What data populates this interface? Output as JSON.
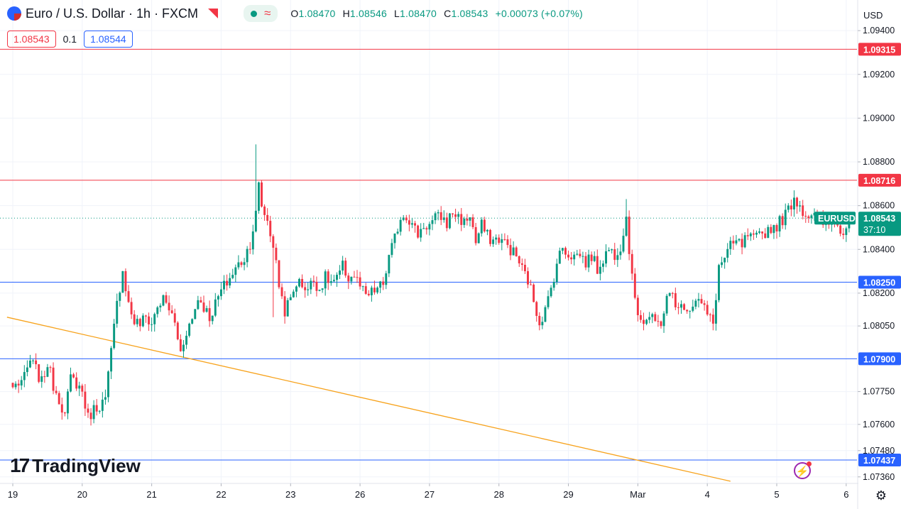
{
  "header": {
    "symbol_title": "Euro / U.S. Dollar · 1h · FXCM",
    "ohlc": {
      "o_label": "O",
      "o": "1.08470",
      "h_label": "H",
      "h": "1.08546",
      "l_label": "L",
      "l": "1.08470",
      "c_label": "C",
      "c": "1.08543",
      "change": "+0.00073 (+0.07%)"
    },
    "sell_price": "1.08543",
    "spread": "0.1",
    "buy_price": "1.08544",
    "currency": "USD"
  },
  "branding": {
    "logo_text": "TradingView"
  },
  "icons": {
    "flag": "eur-usd-flag-icon",
    "market": "market-status-icon",
    "wave": "approx-icon",
    "gear": "settings-gear-icon",
    "alert": "alert-bolt-icon"
  },
  "colors": {
    "up": "#089981",
    "down": "#f23645",
    "support": "#2962ff",
    "resistance": "#f23645",
    "trendline": "#f7a21b",
    "grid": "#f0f3fa"
  },
  "chart_data": {
    "type": "candlestick",
    "symbol": "EURUSD",
    "interval": "1h",
    "ylim": [
      1.0733,
      1.0954
    ],
    "y_ticks": [
      "1.09400",
      "1.09200",
      "1.09000",
      "1.08800",
      "1.08600",
      "1.08400",
      "1.08200",
      "1.08050",
      "1.07750",
      "1.07600",
      "1.07480",
      "1.07360"
    ],
    "y_tick_values": [
      1.094,
      1.092,
      1.09,
      1.088,
      1.086,
      1.084,
      1.082,
      1.0805,
      1.0775,
      1.076,
      1.0748,
      1.0736
    ],
    "x_ticks": [
      "19",
      "20",
      "21",
      "22",
      "23",
      "26",
      "27",
      "28",
      "29",
      "Mar",
      "4",
      "5",
      "6"
    ],
    "x_tick_bar_index": [
      0,
      24,
      48,
      72,
      96,
      120,
      144,
      168,
      192,
      216,
      240,
      264,
      288
    ],
    "horizontal_lines": [
      {
        "label": "1.09315",
        "value": 1.09315,
        "color": "#f23645"
      },
      {
        "label": "1.08716",
        "value": 1.08716,
        "color": "#f23645"
      },
      {
        "label": "1.08250",
        "value": 1.0825,
        "color": "#2962ff"
      },
      {
        "label": "1.07900",
        "value": 1.079,
        "color": "#2962ff"
      },
      {
        "label": "1.07437",
        "value": 1.07437,
        "color": "#2962ff"
      }
    ],
    "trendline": {
      "start": {
        "bar": -2,
        "value": 1.0809
      },
      "end": {
        "bar": 248,
        "value": 1.0734
      },
      "color": "#f7a21b"
    },
    "last_price": {
      "symbol": "EURUSD",
      "value": "1.08543",
      "countdown": "37:10"
    },
    "anchors": [
      [
        0,
        1.0777
      ],
      [
        4,
        1.0781
      ],
      [
        6,
        1.0789
      ],
      [
        8,
        1.0785
      ],
      [
        10,
        1.0779
      ],
      [
        12,
        1.0788
      ],
      [
        14,
        1.0778
      ],
      [
        16,
        1.0772
      ],
      [
        18,
        1.0764
      ],
      [
        20,
        1.0781
      ],
      [
        22,
        1.0779
      ],
      [
        24,
        1.0775
      ],
      [
        26,
        1.0763
      ],
      [
        28,
        1.0767
      ],
      [
        30,
        1.0769
      ],
      [
        32,
        1.0771
      ],
      [
        34,
        1.0793
      ],
      [
        36,
        1.0815
      ],
      [
        38,
        1.0831
      ],
      [
        40,
        1.0815
      ],
      [
        42,
        1.0807
      ],
      [
        44,
        1.0806
      ],
      [
        46,
        1.0809
      ],
      [
        48,
        1.0806
      ],
      [
        50,
        1.0814
      ],
      [
        52,
        1.0817
      ],
      [
        54,
        1.0813
      ],
      [
        56,
        1.0806
      ],
      [
        58,
        1.0793
      ],
      [
        60,
        1.0803
      ],
      [
        62,
        1.0808
      ],
      [
        64,
        1.0818
      ],
      [
        66,
        1.0814
      ],
      [
        68,
        1.0809
      ],
      [
        70,
        1.0815
      ],
      [
        72,
        1.0821
      ],
      [
        74,
        1.0825
      ],
      [
        76,
        1.0829
      ],
      [
        78,
        1.0833
      ],
      [
        80,
        1.0836
      ],
      [
        82,
        1.0843
      ],
      [
        84,
        1.0856
      ],
      [
        85,
        1.0869
      ],
      [
        86,
        1.086
      ],
      [
        88,
        1.0853
      ],
      [
        90,
        1.0842
      ],
      [
        92,
        1.0824
      ],
      [
        94,
        1.0812
      ],
      [
        96,
        1.0817
      ],
      [
        98,
        1.0825
      ],
      [
        100,
        1.0824
      ],
      [
        102,
        1.0822
      ],
      [
        104,
        1.0826
      ],
      [
        106,
        1.0822
      ],
      [
        108,
        1.0827
      ],
      [
        110,
        1.0825
      ],
      [
        112,
        1.0826
      ],
      [
        114,
        1.0832
      ],
      [
        116,
        1.0827
      ],
      [
        118,
        1.0828
      ],
      [
        120,
        1.0823
      ],
      [
        122,
        1.0818
      ],
      [
        124,
        1.082
      ],
      [
        126,
        1.0822
      ],
      [
        128,
        1.0824
      ],
      [
        130,
        1.0836
      ],
      [
        132,
        1.0845
      ],
      [
        134,
        1.0855
      ],
      [
        136,
        1.0856
      ],
      [
        138,
        1.0851
      ],
      [
        140,
        1.0847
      ],
      [
        142,
        1.0851
      ],
      [
        144,
        1.0851
      ],
      [
        146,
        1.0854
      ],
      [
        148,
        1.0855
      ],
      [
        150,
        1.0852
      ],
      [
        152,
        1.0857
      ],
      [
        154,
        1.0855
      ],
      [
        156,
        1.0852
      ],
      [
        158,
        1.0856
      ],
      [
        160,
        1.0843
      ],
      [
        162,
        1.0851
      ],
      [
        164,
        1.0846
      ],
      [
        166,
        1.0844
      ],
      [
        168,
        1.0845
      ],
      [
        170,
        1.0843
      ],
      [
        172,
        1.084
      ],
      [
        174,
        1.0837
      ],
      [
        176,
        1.0831
      ],
      [
        178,
        1.0826
      ],
      [
        180,
        1.0817
      ],
      [
        182,
        1.0807
      ],
      [
        184,
        1.0812
      ],
      [
        186,
        1.0822
      ],
      [
        188,
        1.0834
      ],
      [
        190,
        1.0841
      ],
      [
        192,
        1.0838
      ],
      [
        194,
        1.0837
      ],
      [
        196,
        1.0838
      ],
      [
        198,
        1.0834
      ],
      [
        200,
        1.0837
      ],
      [
        202,
        1.0831
      ],
      [
        204,
        1.0836
      ],
      [
        206,
        1.084
      ],
      [
        208,
        1.0838
      ],
      [
        210,
        1.0842
      ],
      [
        212,
        1.0855
      ],
      [
        214,
        1.0826
      ],
      [
        216,
        1.0812
      ],
      [
        218,
        1.0807
      ],
      [
        220,
        1.0809
      ],
      [
        222,
        1.0806
      ],
      [
        224,
        1.0807
      ],
      [
        226,
        1.0817
      ],
      [
        228,
        1.082
      ],
      [
        230,
        1.0812
      ],
      [
        232,
        1.0815
      ],
      [
        234,
        1.0813
      ],
      [
        236,
        1.0818
      ],
      [
        238,
        1.0815
      ],
      [
        240,
        1.081
      ],
      [
        242,
        1.0806
      ],
      [
        244,
        1.0832
      ],
      [
        246,
        1.0836
      ],
      [
        248,
        1.0841
      ],
      [
        250,
        1.0843
      ],
      [
        252,
        1.0842
      ],
      [
        254,
        1.0846
      ],
      [
        256,
        1.0844
      ],
      [
        258,
        1.0846
      ],
      [
        260,
        1.0848
      ],
      [
        262,
        1.085
      ],
      [
        264,
        1.0851
      ],
      [
        266,
        1.0854
      ],
      [
        268,
        1.0858
      ],
      [
        270,
        1.0864
      ],
      [
        272,
        1.086
      ],
      [
        274,
        1.0856
      ],
      [
        276,
        1.0856
      ],
      [
        278,
        1.0854
      ],
      [
        280,
        1.0852
      ],
      [
        282,
        1.0851
      ],
      [
        284,
        1.0854
      ],
      [
        286,
        1.0847
      ],
      [
        288,
        1.0851
      ],
      [
        289,
        1.08543
      ]
    ],
    "spikes": [
      {
        "bar": 84,
        "high": 1.0888
      },
      {
        "bar": 85,
        "high": 1.0871
      },
      {
        "bar": 90,
        "low": 1.0809
      },
      {
        "bar": 182,
        "low": 1.0803
      },
      {
        "bar": 212,
        "high": 1.0863
      },
      {
        "bar": 218,
        "low": 1.0803
      },
      {
        "bar": 242,
        "low": 1.0803
      },
      {
        "bar": 270,
        "high": 1.0867
      }
    ]
  }
}
